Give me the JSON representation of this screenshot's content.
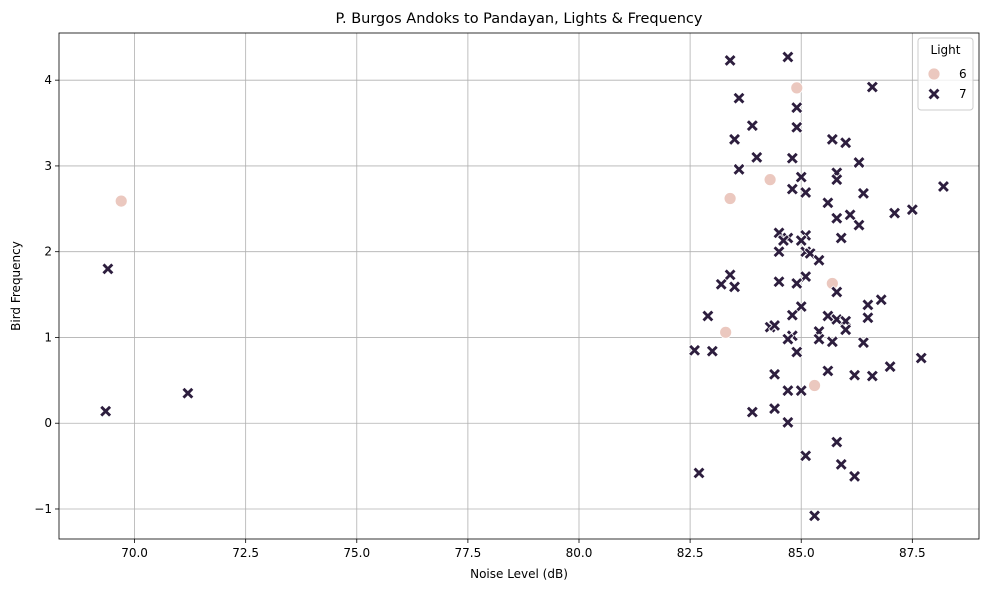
{
  "chart_data": {
    "type": "scatter",
    "title": "P. Burgos Andoks to Pandayan, Lights & Frequency",
    "xlabel": "Noise Level (dB)",
    "ylabel": "Bird Frequency",
    "xlim": [
      68.3,
      89.0
    ],
    "ylim": [
      -1.35,
      4.55
    ],
    "xticks": [
      70.0,
      72.5,
      75.0,
      77.5,
      80.0,
      82.5,
      85.0,
      87.5
    ],
    "xtick_labels": [
      "70.0",
      "72.5",
      "75.0",
      "77.5",
      "80.0",
      "82.5",
      "85.0",
      "87.5"
    ],
    "yticks": [
      -1,
      0,
      1,
      2,
      3,
      4
    ],
    "ytick_labels": [
      "−1",
      "0",
      "1",
      "2",
      "3",
      "4"
    ],
    "grid": true,
    "legend": {
      "title": "Light",
      "position": "top-right",
      "entries": [
        {
          "label": "6",
          "marker": "circle",
          "color": "#ebc8bf"
        },
        {
          "label": "7",
          "marker": "x",
          "color": "#2d1e3e"
        }
      ]
    },
    "series": [
      {
        "name": "6",
        "marker": "circle",
        "color": "#ebc8bf",
        "points": [
          [
            69.7,
            2.59
          ],
          [
            83.4,
            2.62
          ],
          [
            84.3,
            2.84
          ],
          [
            84.9,
            3.91
          ],
          [
            83.3,
            1.06
          ],
          [
            85.7,
            1.63
          ],
          [
            85.3,
            0.44
          ]
        ]
      },
      {
        "name": "7",
        "marker": "x",
        "color": "#2d1e3e",
        "points": [
          [
            69.4,
            1.8
          ],
          [
            69.35,
            0.14
          ],
          [
            71.2,
            0.35
          ],
          [
            83.4,
            4.23
          ],
          [
            84.7,
            4.27
          ],
          [
            86.6,
            3.92
          ],
          [
            83.6,
            3.79
          ],
          [
            84.9,
            3.68
          ],
          [
            83.9,
            3.47
          ],
          [
            84.9,
            3.45
          ],
          [
            83.5,
            3.31
          ],
          [
            85.7,
            3.31
          ],
          [
            86.0,
            3.27
          ],
          [
            84.0,
            3.1
          ],
          [
            84.8,
            3.09
          ],
          [
            86.3,
            3.04
          ],
          [
            83.6,
            2.96
          ],
          [
            85.8,
            2.92
          ],
          [
            85.0,
            2.87
          ],
          [
            85.8,
            2.84
          ],
          [
            88.2,
            2.76
          ],
          [
            84.8,
            2.73
          ],
          [
            85.1,
            2.69
          ],
          [
            86.4,
            2.68
          ],
          [
            85.6,
            2.57
          ],
          [
            87.5,
            2.49
          ],
          [
            87.1,
            2.45
          ],
          [
            86.1,
            2.43
          ],
          [
            85.8,
            2.39
          ],
          [
            86.3,
            2.31
          ],
          [
            84.5,
            2.22
          ],
          [
            85.1,
            2.19
          ],
          [
            84.7,
            2.16
          ],
          [
            85.9,
            2.16
          ],
          [
            85.0,
            2.13
          ],
          [
            84.6,
            2.13
          ],
          [
            84.5,
            2.0
          ],
          [
            85.1,
            2.0
          ],
          [
            85.2,
            1.98
          ],
          [
            85.4,
            1.9
          ],
          [
            83.4,
            1.73
          ],
          [
            85.1,
            1.71
          ],
          [
            84.5,
            1.65
          ],
          [
            84.9,
            1.63
          ],
          [
            83.2,
            1.62
          ],
          [
            83.5,
            1.59
          ],
          [
            85.8,
            1.53
          ],
          [
            86.8,
            1.44
          ],
          [
            86.5,
            1.38
          ],
          [
            85.0,
            1.36
          ],
          [
            84.8,
            1.26
          ],
          [
            82.9,
            1.25
          ],
          [
            85.6,
            1.25
          ],
          [
            86.5,
            1.23
          ],
          [
            85.8,
            1.21
          ],
          [
            86.0,
            1.19
          ],
          [
            84.3,
            1.12
          ],
          [
            84.4,
            1.14
          ],
          [
            86.0,
            1.09
          ],
          [
            85.4,
            1.07
          ],
          [
            84.8,
            1.02
          ],
          [
            84.7,
            0.98
          ],
          [
            85.4,
            0.98
          ],
          [
            85.7,
            0.95
          ],
          [
            86.4,
            0.94
          ],
          [
            82.6,
            0.85
          ],
          [
            83.0,
            0.84
          ],
          [
            84.9,
            0.83
          ],
          [
            87.7,
            0.76
          ],
          [
            87.0,
            0.66
          ],
          [
            85.6,
            0.61
          ],
          [
            84.4,
            0.57
          ],
          [
            86.2,
            0.56
          ],
          [
            86.6,
            0.55
          ],
          [
            84.7,
            0.38
          ],
          [
            85.0,
            0.38
          ],
          [
            84.4,
            0.17
          ],
          [
            83.9,
            0.13
          ],
          [
            84.7,
            0.01
          ],
          [
            85.8,
            -0.22
          ],
          [
            85.1,
            -0.38
          ],
          [
            85.9,
            -0.48
          ],
          [
            82.7,
            -0.58
          ],
          [
            86.2,
            -0.62
          ],
          [
            85.3,
            -1.08
          ]
        ]
      }
    ]
  }
}
